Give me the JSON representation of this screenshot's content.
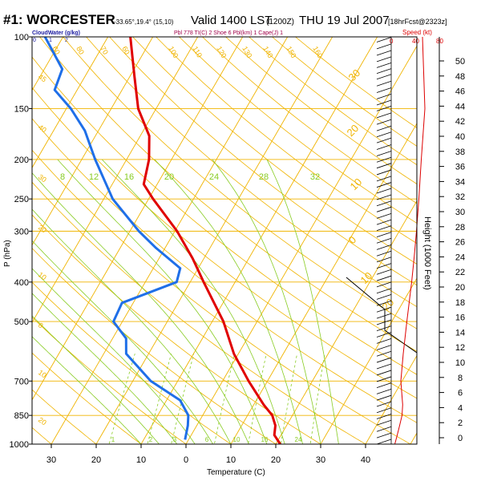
{
  "header": {
    "station": "#1: WORCESTER",
    "coords": "-33.65°,19.4° (15,10)",
    "valid": "Valid 1400 LST",
    "utc": "(1200Z)",
    "date": "THU 19 Jul 2007",
    "forecast": "[18hrFcst@2323z]"
  },
  "subheader": {
    "cloudwater": "CloudWater (g/kg)",
    "cloud_ticks": [
      "0",
      "1",
      "2"
    ],
    "params": "Pbl 778 TI(C) 2 Shoe 6 Pbl(km) 1 Cape(J) 1",
    "speed_label": "Speed (kt)",
    "speed_ticks": [
      "0",
      "40",
      "80"
    ]
  },
  "colors": {
    "isobar": "#f0b400",
    "mixing_ratio": "#88cc22",
    "moist_adiabat": "#88cc22",
    "dry_adiabat": "#f0b400",
    "temperature": "#e00000",
    "dewpoint": "#1f6fe8",
    "speed_profile": "#dd0000",
    "text": "#000000",
    "title_text": "#000000"
  },
  "chart_data": {
    "type": "line",
    "title": "#1: WORCESTER",
    "xlabel": "Temperature (C)",
    "ylabel": "P (hPa)",
    "x_ticks": [
      "30",
      "20",
      "10",
      "0",
      "10",
      "20",
      "30",
      "40"
    ],
    "y_ticks": [
      "100",
      "150",
      "200",
      "250",
      "300",
      "400",
      "500",
      "700",
      "850",
      "1000"
    ],
    "skewed_isotherm_labels": [
      "60",
      "50",
      "40",
      "30",
      "20",
      "10",
      "0"
    ],
    "isotherm_top_labels": [
      "90",
      "80",
      "70",
      "60",
      "50",
      "40",
      "30",
      "20",
      "10",
      "0",
      "10",
      "20",
      "30",
      "40"
    ],
    "dry_adiabat_labels": [
      "100",
      "110",
      "120",
      "130",
      "140",
      "150",
      "160"
    ],
    "moist_adiabat_labels": [
      "30",
      "20",
      "10",
      "0",
      "10",
      "20"
    ],
    "mixing_ratio_labels": [
      "8",
      "12",
      "16",
      "20",
      "24",
      "28",
      "32"
    ],
    "mixing_ratio_bottom_labels": [
      "1",
      "2",
      "3",
      "6",
      "10",
      "16",
      "24"
    ],
    "series": [
      {
        "name": "Temperature",
        "points": [
          [
            1000,
            21.0
          ],
          [
            950,
            18.5
          ],
          [
            900,
            17.5
          ],
          [
            850,
            15.5
          ],
          [
            800,
            12.2
          ],
          [
            700,
            5.8
          ],
          [
            600,
            -1.0
          ],
          [
            500,
            -7.5
          ],
          [
            400,
            -17.0
          ],
          [
            350,
            -22.5
          ],
          [
            300,
            -29.5
          ],
          [
            250,
            -39.0
          ],
          [
            230,
            -43.0
          ],
          [
            200,
            -45.0
          ],
          [
            175,
            -48.0
          ],
          [
            150,
            -54.0
          ],
          [
            125,
            -59.0
          ],
          [
            100,
            -65.0
          ]
        ]
      },
      {
        "name": "Dewpoint",
        "points": [
          [
            975,
            -0.8
          ],
          [
            900,
            -2.0
          ],
          [
            850,
            -3.2
          ],
          [
            780,
            -7.0
          ],
          [
            700,
            -16.0
          ],
          [
            600,
            -25.0
          ],
          [
            550,
            -27.0
          ],
          [
            500,
            -32.0
          ],
          [
            450,
            -32.5
          ],
          [
            400,
            -23.0
          ],
          [
            370,
            -24.0
          ],
          [
            330,
            -32.0
          ],
          [
            300,
            -38.0
          ],
          [
            250,
            -48.0
          ],
          [
            200,
            -57.0
          ],
          [
            170,
            -63.0
          ],
          [
            150,
            -69.0
          ],
          [
            135,
            -75.0
          ],
          [
            120,
            -76.0
          ],
          [
            100,
            -84.0
          ]
        ]
      }
    ],
    "height_axis": {
      "label": "Height (1000 Feet)",
      "ticks": [
        "0",
        "2",
        "4",
        "6",
        "8",
        "10",
        "12",
        "14",
        "16",
        "18",
        "20",
        "22",
        "24",
        "26",
        "28",
        "30",
        "32",
        "34",
        "36",
        "38",
        "40",
        "42",
        "44",
        "46",
        "48",
        "50"
      ]
    },
    "wind_speed_profile": {
      "xlim": [
        0,
        80
      ],
      "points": [
        [
          1000,
          6
        ],
        [
          950,
          10
        ],
        [
          900,
          14
        ],
        [
          850,
          18
        ],
        [
          800,
          19
        ],
        [
          700,
          16
        ],
        [
          600,
          20
        ],
        [
          500,
          26
        ],
        [
          400,
          34
        ],
        [
          350,
          38
        ],
        [
          300,
          42
        ],
        [
          250,
          46
        ],
        [
          200,
          50
        ],
        [
          150,
          56
        ],
        [
          100,
          52
        ]
      ]
    },
    "ylim": [
      100,
      1000
    ],
    "xlim": [
      -35,
      50
    ],
    "y_scale": "log",
    "grid": true
  }
}
